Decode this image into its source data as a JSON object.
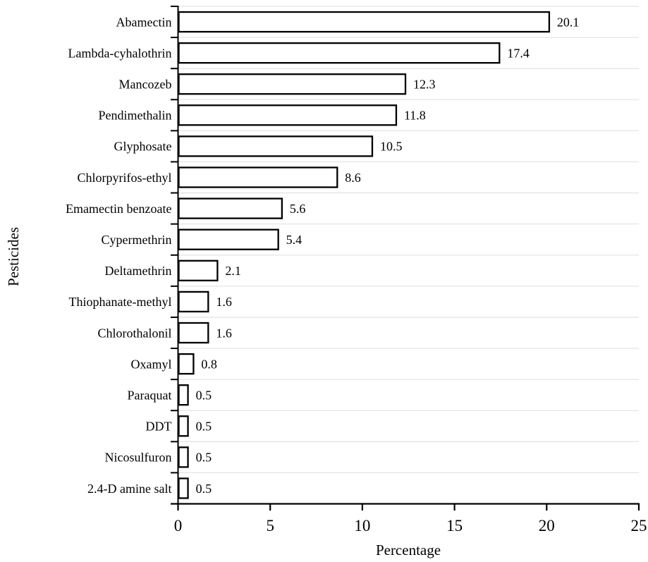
{
  "chart_data": {
    "type": "bar",
    "orientation": "horizontal",
    "title": "",
    "xlabel": "Percentage",
    "ylabel": "Pesticides",
    "categories": [
      "Abamectin",
      "Lambda-cyhalothrin",
      "Mancozeb",
      "Pendimethalin",
      "Glyphosate",
      "Chlorpyrifos-ethyl",
      "Emamectin benzoate",
      "Cypermethrin",
      "Deltamethrin",
      "Thiophanate-methyl",
      "Chlorothalonil",
      "Oxamyl",
      "Paraquat",
      "DDT",
      "Nicosulfuron",
      "2.4-D amine salt"
    ],
    "values": [
      20.1,
      17.4,
      12.3,
      11.8,
      10.5,
      8.6,
      5.6,
      5.4,
      2.1,
      1.6,
      1.6,
      0.8,
      0.5,
      0.5,
      0.5,
      0.5
    ],
    "value_labels": [
      "20.1",
      "17.4",
      "12.3",
      "11.8",
      "10.5",
      "8.6",
      "5.6",
      "5.4",
      "2.1",
      "1.6",
      "1.6",
      "0.8",
      "0.5",
      "0.5",
      "0.5",
      "0.5"
    ],
    "xlim": [
      0,
      25
    ],
    "x_tick_values": [
      0,
      5,
      10,
      15,
      20,
      25
    ],
    "x_tick_labels": [
      "0",
      "5",
      "10",
      "15",
      "20",
      "25"
    ],
    "grid": "horizontal row separators",
    "legend": "none",
    "colors": {
      "background": "#ffffff",
      "bar_fill": "#ffffff",
      "bar_stroke": "#000000",
      "axis": "#000000",
      "gridline": "#e4e4e4",
      "text": "#000000"
    }
  }
}
